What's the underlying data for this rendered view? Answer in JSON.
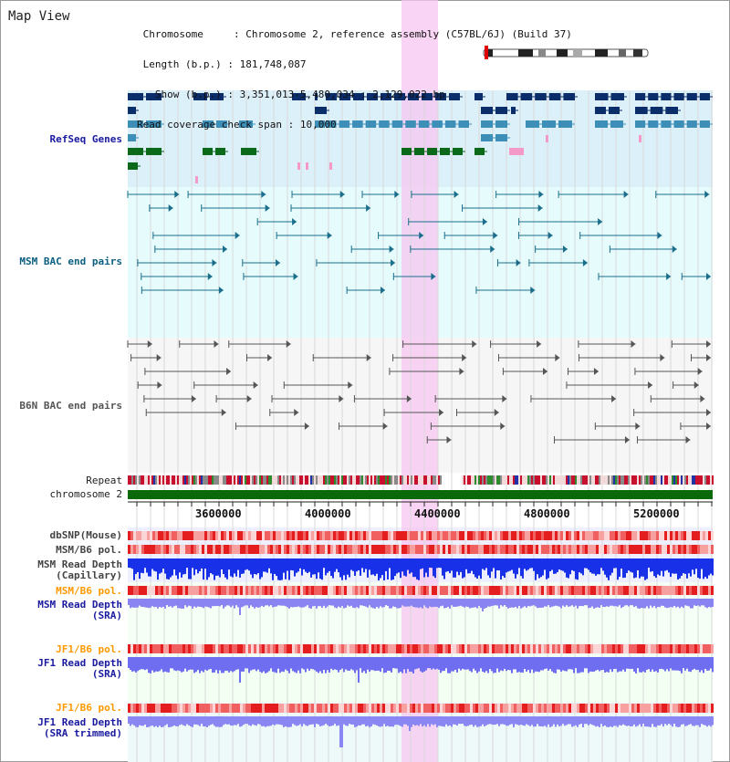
{
  "title": "Map View",
  "info": {
    "chromosome_key": "Chromosome",
    "chromosome_val": "Chromosome 2, reference assembly (C57BL/6J) (Build 37)",
    "length_key": "Length (b.p.)",
    "length_val": "181,748,087",
    "show_key": "Show (b.p.)",
    "show_val": "3,351,013-5,480,034 : 2,129,022 bp",
    "coverage_key": "Read coverage check span",
    "coverage_val": "10,000"
  },
  "tracks": {
    "refseq": "RefSeq Genes",
    "msm_bac": "MSM BAC end pairs",
    "b6n_bac": "B6N BAC end pairs",
    "repeat": "Repeat",
    "chromosome": "chromosome 2",
    "dbsnp": "dbSNP(Mouse)",
    "msm_b6_pol": "MSM/B6 pol.",
    "msm_depth_cap_1": "MSM Read Depth",
    "msm_depth_cap_2": "(Capillary)",
    "msm_b6_pol2": "MSM/B6 pol.",
    "msm_depth_sra_1": "MSM Read Depth",
    "msm_depth_sra_2": "(SRA)",
    "jf1_b6_pol": "JF1/B6 pol.",
    "jf1_depth_sra_1": "JF1 Read Depth",
    "jf1_depth_sra_2": "(SRA)",
    "jf1_b6_pol2": "JF1/B6 pol.",
    "jf1_depth_trim_1": "JF1 Read Depth",
    "jf1_depth_trim_2": "(SRA trimmed)"
  },
  "axis": {
    "ticks": [
      "3600000",
      "4000000",
      "4400000",
      "4800000",
      "5200000"
    ]
  },
  "colors": {
    "refseq_label": "#1a1aa0",
    "msm_bac_label": "#0b5f80",
    "b6n_label": "#555555",
    "orange_label": "#ff9900",
    "blue_label": "#1a1aa0",
    "gray_label": "#444444",
    "highlight": "#f7c6f0"
  }
}
